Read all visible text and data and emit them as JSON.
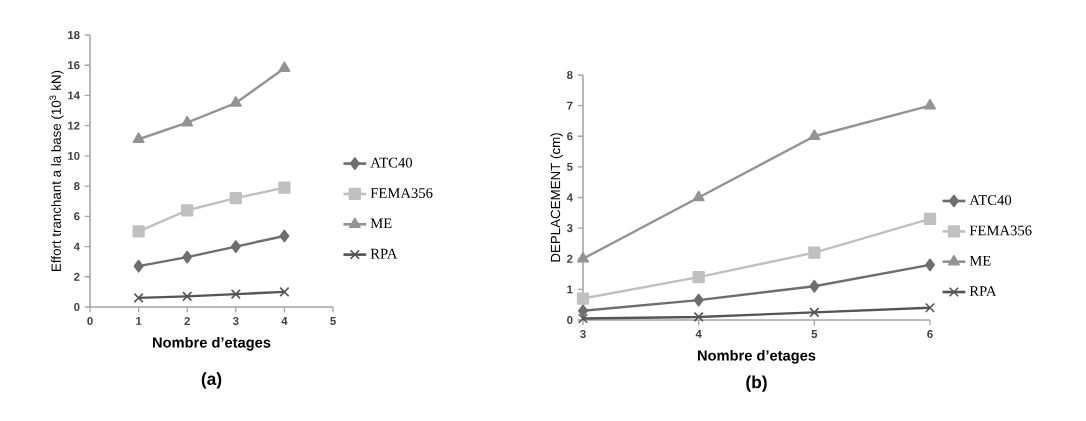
{
  "chart_data": [
    {
      "type": "line",
      "xlabel": "Nombre d’etages",
      "ylabel": "Effort tranchant a la base (10$^{3}$ kN)",
      "annotations": [
        "(a)"
      ],
      "x": [
        1,
        2,
        3,
        4
      ],
      "xlim": [
        0,
        5
      ],
      "xticks": [
        0,
        1,
        2,
        3,
        4,
        5
      ],
      "ylim": [
        0,
        18
      ],
      "yticks": [
        0,
        2,
        4,
        6,
        8,
        10,
        12,
        14,
        16,
        18
      ],
      "grid": false,
      "legend": "right",
      "line_style": "solid",
      "series": [
        {
          "name": "ATC40",
          "color": "#6e6e6e",
          "marker": "diamond",
          "values": [
            2.7,
            3.3,
            4.0,
            4.7
          ]
        },
        {
          "name": "FEMA356",
          "color": "#c0c0c0",
          "marker": "square",
          "values": [
            5.0,
            6.4,
            7.2,
            7.9
          ]
        },
        {
          "name": "ME",
          "color": "#939393",
          "marker": "triangle",
          "values": [
            11.1,
            12.2,
            13.5,
            15.8
          ]
        },
        {
          "name": "RPA",
          "color": "#555555",
          "marker": "cross",
          "values": [
            0.6,
            0.7,
            0.85,
            1.0
          ]
        }
      ]
    },
    {
      "type": "line",
      "xlabel": "Nombre d’etages",
      "ylabel": "DEPLACEMENT  (cm)",
      "annotations": [
        "(b)"
      ],
      "x": [
        3,
        4,
        5,
        6
      ],
      "xlim": [
        3,
        6
      ],
      "xticks": [
        3,
        4,
        5,
        6
      ],
      "ylim": [
        0,
        8
      ],
      "yticks": [
        0,
        1,
        2,
        3,
        4,
        5,
        6,
        7,
        8
      ],
      "grid": false,
      "legend": "right",
      "line_style": "solid",
      "series": [
        {
          "name": "ATC40",
          "color": "#6e6e6e",
          "marker": "diamond",
          "values": [
            0.3,
            0.65,
            1.1,
            1.8
          ]
        },
        {
          "name": "FEMA356",
          "color": "#c0c0c0",
          "marker": "square",
          "values": [
            0.7,
            1.4,
            2.2,
            3.3
          ]
        },
        {
          "name": "ME",
          "color": "#939393",
          "marker": "triangle",
          "values": [
            2.0,
            4.0,
            6.0,
            7.0
          ]
        },
        {
          "name": "RPA",
          "color": "#555555",
          "marker": "cross",
          "values": [
            0.05,
            0.1,
            0.25,
            0.4
          ]
        }
      ]
    }
  ]
}
